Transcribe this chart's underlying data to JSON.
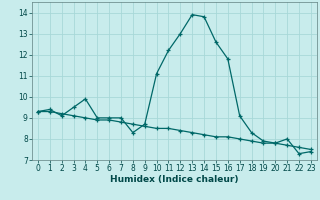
{
  "xlabel": "Humidex (Indice chaleur)",
  "ylabel": "",
  "background_color": "#c8ecec",
  "grid_color": "#a8d8d8",
  "line_color": "#006868",
  "xlim": [
    -0.5,
    23.5
  ],
  "ylim": [
    7,
    14.5
  ],
  "yticks": [
    7,
    8,
    9,
    10,
    11,
    12,
    13,
    14
  ],
  "xticks": [
    0,
    1,
    2,
    3,
    4,
    5,
    6,
    7,
    8,
    9,
    10,
    11,
    12,
    13,
    14,
    15,
    16,
    17,
    18,
    19,
    20,
    21,
    22,
    23
  ],
  "series1_x": [
    0,
    1,
    2,
    3,
    4,
    5,
    6,
    7,
    8,
    9,
    10,
    11,
    12,
    13,
    14,
    15,
    16,
    17,
    18,
    19,
    20,
    21,
    22,
    23
  ],
  "series1_y": [
    9.3,
    9.4,
    9.1,
    9.5,
    9.9,
    9.0,
    9.0,
    9.0,
    8.3,
    8.7,
    11.1,
    12.2,
    13.0,
    13.9,
    13.8,
    12.6,
    11.8,
    9.1,
    8.3,
    7.9,
    7.8,
    8.0,
    7.3,
    7.4
  ],
  "series2_x": [
    0,
    1,
    2,
    3,
    4,
    5,
    6,
    7,
    8,
    9,
    10,
    11,
    12,
    13,
    14,
    15,
    16,
    17,
    18,
    19,
    20,
    21,
    22,
    23
  ],
  "series2_y": [
    9.3,
    9.3,
    9.2,
    9.1,
    9.0,
    8.9,
    8.9,
    8.8,
    8.7,
    8.6,
    8.5,
    8.5,
    8.4,
    8.3,
    8.2,
    8.1,
    8.1,
    8.0,
    7.9,
    7.8,
    7.8,
    7.7,
    7.6,
    7.5
  ],
  "tick_labelsize": 5.5,
  "xlabel_fontsize": 6.5
}
